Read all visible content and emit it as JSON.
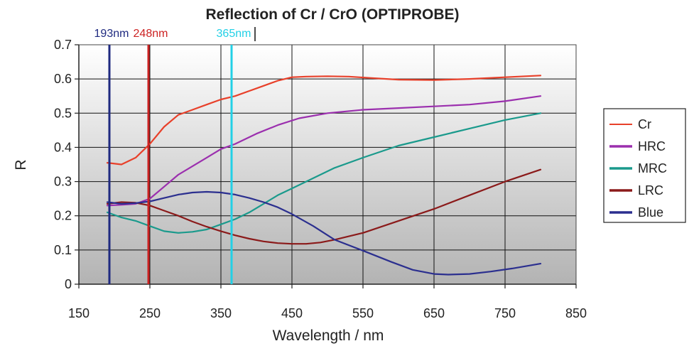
{
  "chart_data": {
    "type": "line",
    "title": "Reflection of Cr / CrO (OPTIPROBE)",
    "xlabel": "Wavelength / nm",
    "ylabel": "R",
    "xlim": [
      150,
      850
    ],
    "ylim": [
      0,
      0.7
    ],
    "xticks": [
      "150",
      "250",
      "350",
      "450",
      "550",
      "650",
      "750",
      "850"
    ],
    "yticks": [
      "0",
      "0.1",
      "0.2",
      "0.3",
      "0.4",
      "0.5",
      "0.6",
      "0.7"
    ],
    "grid": true,
    "legend_position": "right",
    "series": [
      {
        "name": "Cr",
        "color": "#e8402a",
        "x": [
          190,
          210,
          230,
          250,
          270,
          290,
          310,
          330,
          350,
          370,
          390,
          410,
          430,
          450,
          470,
          500,
          530,
          560,
          600,
          650,
          700,
          750,
          800
        ],
        "y": [
          0.355,
          0.35,
          0.37,
          0.41,
          0.46,
          0.495,
          0.51,
          0.525,
          0.54,
          0.55,
          0.565,
          0.58,
          0.595,
          0.605,
          0.607,
          0.608,
          0.607,
          0.603,
          0.598,
          0.597,
          0.6,
          0.605,
          0.61
        ]
      },
      {
        "name": "HRC",
        "color": "#9b2fae",
        "x": [
          190,
          210,
          230,
          250,
          270,
          290,
          310,
          330,
          350,
          370,
          400,
          430,
          460,
          500,
          550,
          600,
          650,
          700,
          750,
          800
        ],
        "y": [
          0.23,
          0.232,
          0.235,
          0.25,
          0.285,
          0.32,
          0.345,
          0.37,
          0.395,
          0.41,
          0.44,
          0.465,
          0.485,
          0.5,
          0.51,
          0.515,
          0.52,
          0.525,
          0.535,
          0.55
        ]
      },
      {
        "name": "MRC",
        "color": "#1a9a8c",
        "x": [
          190,
          210,
          230,
          250,
          270,
          290,
          310,
          330,
          350,
          370,
          390,
          410,
          430,
          450,
          480,
          510,
          550,
          600,
          650,
          700,
          750,
          800
        ],
        "y": [
          0.21,
          0.195,
          0.185,
          0.17,
          0.155,
          0.15,
          0.153,
          0.16,
          0.175,
          0.19,
          0.21,
          0.235,
          0.26,
          0.28,
          0.31,
          0.34,
          0.37,
          0.405,
          0.43,
          0.455,
          0.48,
          0.5
        ]
      },
      {
        "name": "LRC",
        "color": "#8b1a1a",
        "x": [
          190,
          210,
          230,
          250,
          270,
          290,
          310,
          330,
          350,
          370,
          390,
          410,
          430,
          450,
          470,
          490,
          510,
          550,
          600,
          650,
          700,
          750,
          800
        ],
        "y": [
          0.235,
          0.24,
          0.238,
          0.23,
          0.215,
          0.2,
          0.183,
          0.168,
          0.155,
          0.143,
          0.133,
          0.125,
          0.12,
          0.118,
          0.118,
          0.122,
          0.13,
          0.15,
          0.185,
          0.22,
          0.26,
          0.3,
          0.335
        ]
      },
      {
        "name": "Blue",
        "color": "#2b2f8f",
        "x": [
          190,
          210,
          230,
          250,
          270,
          290,
          310,
          330,
          350,
          370,
          390,
          410,
          430,
          450,
          480,
          510,
          550,
          590,
          620,
          650,
          670,
          700,
          730,
          760,
          800
        ],
        "y": [
          0.24,
          0.235,
          0.237,
          0.242,
          0.252,
          0.262,
          0.268,
          0.27,
          0.268,
          0.262,
          0.252,
          0.24,
          0.225,
          0.205,
          0.17,
          0.13,
          0.098,
          0.065,
          0.042,
          0.03,
          0.028,
          0.03,
          0.037,
          0.046,
          0.06
        ]
      }
    ],
    "markers": [
      {
        "label": "193nm",
        "x": 193,
        "color": "#1f2a80"
      },
      {
        "label": "248nm",
        "x": 248,
        "color": "#cc2222"
      },
      {
        "label": "365nm",
        "x": 365,
        "color": "#22d0e6"
      }
    ]
  }
}
